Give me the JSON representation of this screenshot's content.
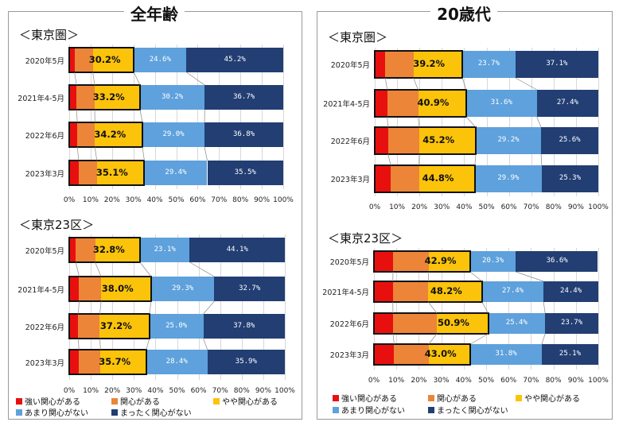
{
  "colors": {
    "strong": "#e8100f",
    "interested": "#ec8538",
    "somewhat": "#fcc30b",
    "little": "#5ea1dc",
    "none": "#223e73"
  },
  "panels": [
    {
      "title": "全年齢"
    },
    {
      "title": "20歳代"
    }
  ],
  "legend": {
    "strong": "強い関心がある",
    "interested": "関心がある",
    "somewhat": "やや関心がある",
    "little": "あまり関心がない",
    "none": "まったく関心がない"
  },
  "chart_data": [
    {
      "type": "bar",
      "orientation": "horizontal-stacked-100",
      "panel": "全年齢",
      "section": "＜東京圏＞",
      "categories": [
        "2020年5月",
        "2021年4-5月",
        "2022年6月",
        "2023年3月"
      ],
      "series": [
        {
          "name": "強い関心がある",
          "key": "strong",
          "values": [
            2.5,
            3.4,
            3.8,
            4.4
          ]
        },
        {
          "name": "関心がある",
          "key": "interested",
          "values": [
            8.5,
            8.5,
            8.2,
            8.5
          ]
        },
        {
          "name": "やや関心がある",
          "key": "somewhat",
          "values": [
            19.2,
            21.2,
            22.2,
            22.2
          ]
        },
        {
          "name": "あまり関心がない",
          "key": "little",
          "values": [
            24.6,
            30.2,
            29.0,
            29.4
          ]
        },
        {
          "name": "まったく関心がない",
          "key": "none",
          "values": [
            45.2,
            36.7,
            36.8,
            35.5
          ]
        }
      ],
      "labels": {
        "somewhat": [
          "30.2%",
          "33.2%",
          "34.2%",
          "35.1%"
        ],
        "little": [
          "24.6%",
          "30.2%",
          "29.0%",
          "29.4%"
        ],
        "none": [
          "45.2%",
          "36.7%",
          "36.8%",
          "35.5%"
        ]
      },
      "xticks": [
        "0%",
        "10%",
        "20%",
        "30%",
        "40%",
        "50%",
        "60%",
        "70%",
        "80%",
        "90%",
        "100%"
      ],
      "xlim": [
        0,
        100
      ]
    },
    {
      "type": "bar",
      "orientation": "horizontal-stacked-100",
      "panel": "全年齢",
      "section": "＜東京23区＞",
      "categories": [
        "2020年5月",
        "2021年4-5月",
        "2022年6月",
        "2023年3月"
      ],
      "series": [
        {
          "name": "強い関心がある",
          "key": "strong",
          "values": [
            3.0,
            4.6,
            4.2,
            4.5
          ]
        },
        {
          "name": "関心がある",
          "key": "interested",
          "values": [
            9.0,
            10.2,
            10.0,
            10.0
          ]
        },
        {
          "name": "やや関心がある",
          "key": "somewhat",
          "values": [
            20.8,
            23.2,
            23.0,
            21.2
          ]
        },
        {
          "name": "あまり関心がない",
          "key": "little",
          "values": [
            23.1,
            29.3,
            25.0,
            28.4
          ]
        },
        {
          "name": "まったく関心がない",
          "key": "none",
          "values": [
            44.1,
            32.7,
            37.8,
            35.9
          ]
        }
      ],
      "labels": {
        "somewhat": [
          "32.8%",
          "38.0%",
          "37.2%",
          "35.7%"
        ],
        "little": [
          "23.1%",
          "29.3%",
          "25.0%",
          "28.4%"
        ],
        "none": [
          "44.1%",
          "32.7%",
          "37.8%",
          "35.9%"
        ]
      },
      "xticks": [
        "0%",
        "10%",
        "20%",
        "30%",
        "40%",
        "50%",
        "60%",
        "70%",
        "80%",
        "90%",
        "100%"
      ],
      "xlim": [
        0,
        100
      ]
    },
    {
      "type": "bar",
      "orientation": "horizontal-stacked-100",
      "panel": "20歳代",
      "section": "＜東京圏＞",
      "categories": [
        "2020年5月",
        "2021年4-5月",
        "2022年6月",
        "2023年3月"
      ],
      "series": [
        {
          "name": "強い関心がある",
          "key": "strong",
          "values": [
            4.7,
            5.6,
            5.9,
            7.2
          ]
        },
        {
          "name": "関心がある",
          "key": "interested",
          "values": [
            12.6,
            13.8,
            14.0,
            12.6
          ]
        },
        {
          "name": "やや関心がある",
          "key": "somewhat",
          "values": [
            21.9,
            21.5,
            25.3,
            25.0
          ]
        },
        {
          "name": "あまり関心がない",
          "key": "little",
          "values": [
            23.7,
            31.6,
            29.2,
            29.9
          ]
        },
        {
          "name": "まったく関心がない",
          "key": "none",
          "values": [
            37.1,
            27.4,
            25.6,
            25.3
          ]
        }
      ],
      "labels": {
        "somewhat": [
          "39.2%",
          "40.9%",
          "45.2%",
          "44.8%"
        ],
        "little": [
          "23.7%",
          "31.6%",
          "29.2%",
          "29.9%"
        ],
        "none": [
          "37.1%",
          "27.4%",
          "25.6%",
          "25.3%"
        ]
      },
      "xticks": [
        "0%",
        "10%",
        "20%",
        "30%",
        "40%",
        "50%",
        "60%",
        "70%",
        "80%",
        "90%",
        "100%"
      ],
      "xlim": [
        0,
        100
      ]
    },
    {
      "type": "bar",
      "orientation": "horizontal-stacked-100",
      "panel": "20歳代",
      "section": "＜東京23区＞",
      "categories": [
        "2020年5月",
        "2021年4-5月",
        "2022年6月",
        "2023年3月"
      ],
      "series": [
        {
          "name": "強い関心がある",
          "key": "strong",
          "values": [
            8.5,
            8.4,
            8.5,
            9.0
          ]
        },
        {
          "name": "関心がある",
          "key": "interested",
          "values": [
            15.9,
            15.8,
            19.5,
            15.4
          ]
        },
        {
          "name": "やや関心がある",
          "key": "somewhat",
          "values": [
            18.5,
            24.0,
            22.9,
            18.6
          ]
        },
        {
          "name": "あまり関心がない",
          "key": "little",
          "values": [
            20.3,
            27.4,
            25.4,
            31.8
          ]
        },
        {
          "name": "まったく関心がない",
          "key": "none",
          "values": [
            36.6,
            24.4,
            23.7,
            25.1
          ]
        }
      ],
      "labels": {
        "somewhat": [
          "42.9%",
          "48.2%",
          "50.9%",
          "43.0%"
        ],
        "little": [
          "20.3%",
          "27.4%",
          "25.4%",
          "31.8%"
        ],
        "none": [
          "36.6%",
          "24.4%",
          "23.7%",
          "25.1%"
        ]
      },
      "xticks": [
        "0%",
        "10%",
        "20%",
        "30%",
        "40%",
        "50%",
        "60%",
        "70%",
        "80%",
        "90%",
        "100%"
      ],
      "xlim": [
        0,
        100
      ]
    }
  ]
}
